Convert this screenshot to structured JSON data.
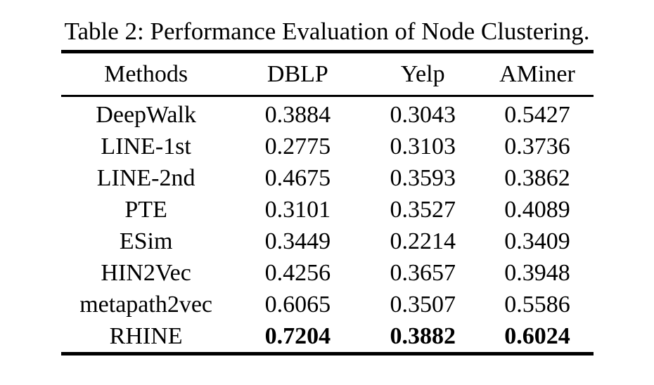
{
  "colors": {
    "background": "#ffffff",
    "text": "#000000",
    "rule": "#000000"
  },
  "table": {
    "caption": "Table 2: Performance Evaluation of Node Clustering.",
    "columns": [
      "Methods",
      "DBLP",
      "Yelp",
      "AMiner"
    ],
    "rows": [
      {
        "method": "DeepWalk",
        "values": [
          "0.3884",
          "0.3043",
          "0.5427"
        ],
        "bold": false
      },
      {
        "method": "LINE-1st",
        "values": [
          "0.2775",
          "0.3103",
          "0.3736"
        ],
        "bold": false
      },
      {
        "method": "LINE-2nd",
        "values": [
          "0.4675",
          "0.3593",
          "0.3862"
        ],
        "bold": false
      },
      {
        "method": "PTE",
        "values": [
          "0.3101",
          "0.3527",
          "0.4089"
        ],
        "bold": false
      },
      {
        "method": "ESim",
        "values": [
          "0.3449",
          "0.2214",
          "0.3409"
        ],
        "bold": false
      },
      {
        "method": "HIN2Vec",
        "values": [
          "0.4256",
          "0.3657",
          "0.3948"
        ],
        "bold": false
      },
      {
        "method": "metapath2vec",
        "values": [
          "0.6065",
          "0.3507",
          "0.5586"
        ],
        "bold": false
      },
      {
        "method": "RHINE",
        "values": [
          "0.7204",
          "0.3882",
          "0.6024"
        ],
        "bold": true
      }
    ]
  }
}
